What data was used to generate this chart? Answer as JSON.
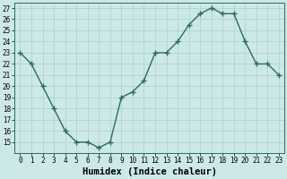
{
  "x": [
    0,
    1,
    2,
    3,
    4,
    5,
    6,
    7,
    8,
    9,
    10,
    11,
    12,
    13,
    14,
    15,
    16,
    17,
    18,
    19,
    20,
    21,
    22,
    23
  ],
  "y": [
    23,
    22,
    20,
    18,
    16,
    15,
    15,
    14.5,
    15,
    19,
    19.5,
    20.5,
    23,
    23,
    24,
    25.5,
    26.5,
    27,
    26.5,
    26.5,
    24,
    22,
    22,
    21
  ],
  "line_color": "#2e6b5e",
  "marker": "+",
  "marker_size": 4,
  "bg_color": "#cce9e8",
  "grid_color": "#aacfce",
  "xlabel": "Humidex (Indice chaleur)",
  "xlim": [
    -0.5,
    23.5
  ],
  "ylim": [
    14,
    27.5
  ],
  "yticks": [
    15,
    16,
    17,
    18,
    19,
    20,
    21,
    22,
    23,
    24,
    25,
    26,
    27
  ],
  "xticks": [
    0,
    1,
    2,
    3,
    4,
    5,
    6,
    7,
    8,
    9,
    10,
    11,
    12,
    13,
    14,
    15,
    16,
    17,
    18,
    19,
    20,
    21,
    22,
    23
  ],
  "tick_label_size": 5.5,
  "xlabel_size": 7.5,
  "line_width": 1.0,
  "marker_edge_width": 1.0
}
